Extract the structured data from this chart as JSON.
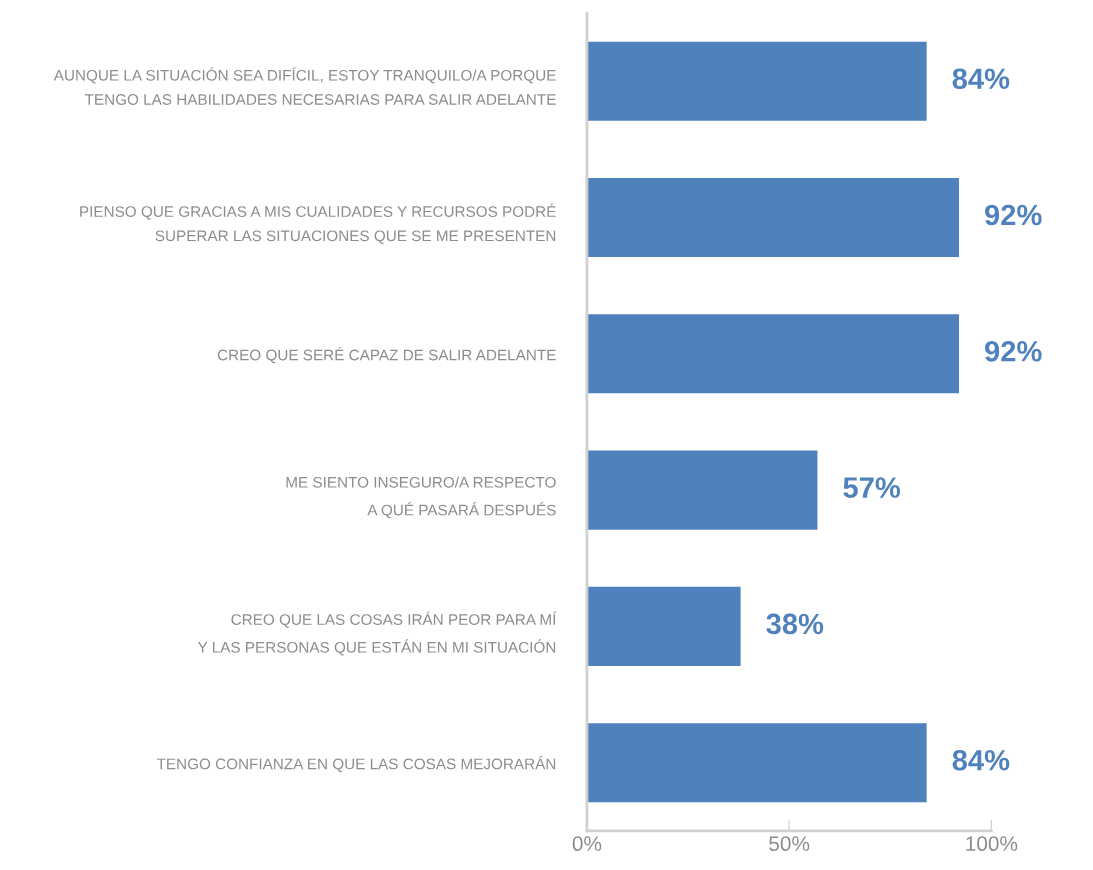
{
  "chart_data": {
    "type": "bar",
    "orientation": "horizontal",
    "categories": [
      "AUNQUE LA SITUACIÓN SEA DIFÍCIL, ESTOY TRANQUILO/A PORQUE\nTENGO LAS HABILIDADES NECESARIAS PARA SALIR ADELANTE",
      "PIENSO QUE GRACIAS A MIS CUALIDADES Y RECURSOS PODRÉ\nSUPERAR LAS SITUACIONES QUE SE ME PRESENTEN",
      "CREO QUE SERÉ CAPAZ DE SALIR ADELANTE",
      "ME SIENTO INSEGURO/A RESPECTO\nA QUÉ PASARÁ DESPUÉS",
      "CREO QUE LAS COSAS IRÁN PEOR PARA MÍ\nY LAS PERSONAS QUE ESTÁN EN MI SITUACIÓN",
      "TENGO CONFIANZA EN QUE LAS COSAS MEJORARÁN"
    ],
    "values": [
      84,
      92,
      92,
      57,
      38,
      84
    ],
    "value_labels": [
      "84%",
      "92%",
      "92%",
      "57%",
      "38%",
      "84%"
    ],
    "color": "#4f81bd",
    "xlim": [
      0,
      100
    ],
    "xticks": [
      {
        "value": 0,
        "label": "0%"
      },
      {
        "value": 50,
        "label": "50%"
      },
      {
        "value": 100,
        "label": "100%"
      }
    ],
    "grid": false,
    "legend": false
  }
}
